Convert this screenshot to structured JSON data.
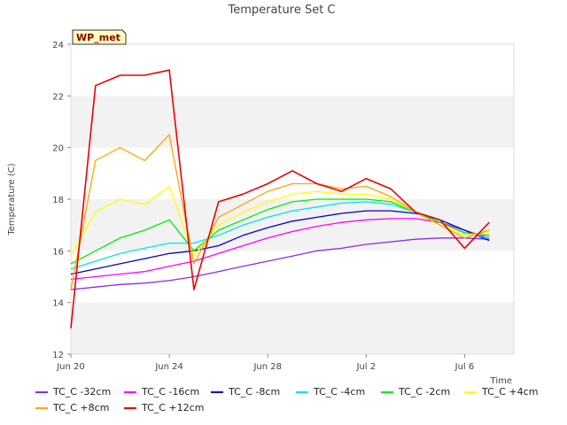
{
  "chart_data": {
    "type": "line",
    "title": "Temperature Set C",
    "xlabel": "Time",
    "ylabel": "Temperature (C)",
    "badge": "WP_met",
    "ylim": [
      12,
      24
    ],
    "xlim": [
      "2024-06-20",
      "2024-07-08"
    ],
    "xticks": [
      {
        "date": "2024-06-20",
        "label": "Jun 20"
      },
      {
        "date": "2024-06-24",
        "label": "Jun 24"
      },
      {
        "date": "2024-06-28",
        "label": "Jun 28"
      },
      {
        "date": "2024-07-02",
        "label": "Jul 2"
      },
      {
        "date": "2024-07-06",
        "label": "Jul 6"
      }
    ],
    "yticks": [
      12,
      14,
      16,
      18,
      20,
      22,
      24
    ],
    "grid": "horizontal bands",
    "legend_position": "bottom",
    "series": [
      {
        "name": "TC_C -32cm",
        "color": "#8a2be2",
        "x": [
          "2024-06-20",
          "2024-06-21",
          "2024-06-22",
          "2024-06-23",
          "2024-06-24",
          "2024-06-25",
          "2024-06-26",
          "2024-06-27",
          "2024-06-28",
          "2024-06-29",
          "2024-06-30",
          "2024-07-01",
          "2024-07-02",
          "2024-07-03",
          "2024-07-04",
          "2024-07-05",
          "2024-07-06",
          "2024-07-07"
        ],
        "y": [
          14.5,
          14.6,
          14.7,
          14.75,
          14.85,
          15.0,
          15.2,
          15.4,
          15.6,
          15.8,
          16.0,
          16.1,
          16.25,
          16.35,
          16.45,
          16.5,
          16.5,
          16.45
        ]
      },
      {
        "name": "TC_C -16cm",
        "color": "#ff00ff",
        "x": [
          "2024-06-20",
          "2024-06-21",
          "2024-06-22",
          "2024-06-23",
          "2024-06-24",
          "2024-06-25",
          "2024-06-26",
          "2024-06-27",
          "2024-06-28",
          "2024-06-29",
          "2024-06-30",
          "2024-07-01",
          "2024-07-02",
          "2024-07-03",
          "2024-07-04",
          "2024-07-05",
          "2024-07-06",
          "2024-07-07"
        ],
        "y": [
          14.9,
          15.0,
          15.1,
          15.2,
          15.4,
          15.6,
          15.9,
          16.2,
          16.5,
          16.75,
          16.95,
          17.1,
          17.2,
          17.25,
          17.25,
          17.1,
          16.8,
          16.5
        ]
      },
      {
        "name": "TC_C -8cm",
        "color": "#0000cd",
        "x": [
          "2024-06-20",
          "2024-06-21",
          "2024-06-22",
          "2024-06-23",
          "2024-06-24",
          "2024-06-25",
          "2024-06-26",
          "2024-06-27",
          "2024-06-28",
          "2024-06-29",
          "2024-06-30",
          "2024-07-01",
          "2024-07-02",
          "2024-07-03",
          "2024-07-04",
          "2024-07-05",
          "2024-07-06",
          "2024-07-07"
        ],
        "y": [
          15.1,
          15.3,
          15.5,
          15.7,
          15.9,
          16.0,
          16.2,
          16.6,
          16.9,
          17.15,
          17.3,
          17.45,
          17.55,
          17.55,
          17.45,
          17.2,
          16.8,
          16.4
        ]
      },
      {
        "name": "TC_C -4cm",
        "color": "#00e5ee",
        "x": [
          "2024-06-20",
          "2024-06-21",
          "2024-06-22",
          "2024-06-23",
          "2024-06-24",
          "2024-06-25",
          "2024-06-26",
          "2024-06-27",
          "2024-06-28",
          "2024-06-29",
          "2024-06-30",
          "2024-07-01",
          "2024-07-02",
          "2024-07-03",
          "2024-07-04",
          "2024-07-05",
          "2024-07-06",
          "2024-07-07"
        ],
        "y": [
          15.3,
          15.6,
          15.9,
          16.1,
          16.3,
          16.3,
          16.6,
          17.0,
          17.3,
          17.55,
          17.7,
          17.85,
          17.9,
          17.8,
          17.5,
          17.1,
          16.7,
          16.5
        ]
      },
      {
        "name": "TC_C -2cm",
        "color": "#00ee00",
        "x": [
          "2024-06-20",
          "2024-06-21",
          "2024-06-22",
          "2024-06-23",
          "2024-06-24",
          "2024-06-25",
          "2024-06-26",
          "2024-06-27",
          "2024-06-28",
          "2024-06-29",
          "2024-06-30",
          "2024-07-01",
          "2024-07-02",
          "2024-07-03",
          "2024-07-04",
          "2024-07-05",
          "2024-07-06",
          "2024-07-07"
        ],
        "y": [
          15.5,
          16.0,
          16.5,
          16.8,
          17.2,
          16.0,
          16.8,
          17.2,
          17.6,
          17.9,
          18.0,
          18.0,
          18.0,
          17.9,
          17.5,
          17.1,
          16.7,
          16.6
        ]
      },
      {
        "name": "TC_C +4cm",
        "color": "#ffff00",
        "x": [
          "2024-06-20",
          "2024-06-21",
          "2024-06-22",
          "2024-06-23",
          "2024-06-24",
          "2024-06-25",
          "2024-06-26",
          "2024-06-27",
          "2024-06-28",
          "2024-06-29",
          "2024-06-30",
          "2024-07-01",
          "2024-07-02",
          "2024-07-03",
          "2024-07-04",
          "2024-07-05",
          "2024-07-06",
          "2024-07-07"
        ],
        "y": [
          15.8,
          17.5,
          18.0,
          17.8,
          18.5,
          15.8,
          17.0,
          17.5,
          17.9,
          18.2,
          18.3,
          18.2,
          18.2,
          18.0,
          17.5,
          17.0,
          16.6,
          16.7
        ]
      },
      {
        "name": "TC_C +8cm",
        "color": "#ffa500",
        "x": [
          "2024-06-20",
          "2024-06-21",
          "2024-06-22",
          "2024-06-23",
          "2024-06-24",
          "2024-06-25",
          "2024-06-26",
          "2024-06-27",
          "2024-06-28",
          "2024-06-29",
          "2024-06-30",
          "2024-07-01",
          "2024-07-02",
          "2024-07-03",
          "2024-07-04",
          "2024-07-05",
          "2024-07-06",
          "2024-07-07"
        ],
        "y": [
          14.5,
          19.5,
          20.0,
          19.5,
          20.5,
          15.5,
          17.3,
          17.8,
          18.3,
          18.6,
          18.6,
          18.4,
          18.5,
          18.1,
          17.5,
          17.0,
          16.5,
          16.8
        ]
      },
      {
        "name": "TC_C +12cm",
        "color": "#ee0000",
        "x": [
          "2024-06-20",
          "2024-06-21",
          "2024-06-22",
          "2024-06-23",
          "2024-06-24",
          "2024-06-25",
          "2024-06-26",
          "2024-06-27",
          "2024-06-28",
          "2024-06-29",
          "2024-06-30",
          "2024-07-01",
          "2024-07-02",
          "2024-07-03",
          "2024-07-04",
          "2024-07-05",
          "2024-07-06",
          "2024-07-07"
        ],
        "y": [
          13.0,
          22.4,
          22.8,
          22.8,
          23.0,
          14.5,
          17.9,
          18.2,
          18.6,
          19.1,
          18.6,
          18.3,
          18.8,
          18.4,
          17.5,
          17.2,
          16.1,
          17.1
        ]
      }
    ]
  }
}
